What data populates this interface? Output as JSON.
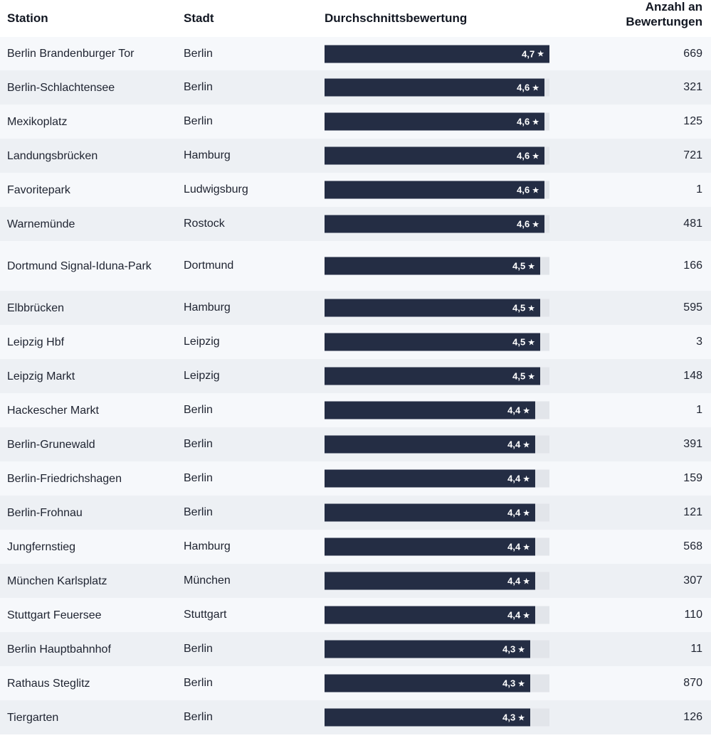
{
  "chart_data": {
    "type": "table",
    "columns": {
      "station": "Station",
      "city": "Stadt",
      "rating": "Durchschnittsbewertung",
      "count_line1": "Anzahl an",
      "count_line2": "Bewertungen"
    },
    "star_glyph": "★",
    "bar_color": "#242d44",
    "track_color": "#e2e5ea",
    "rating_scale_max": 5,
    "rows": [
      {
        "station": "Berlin Brandenburger Tor",
        "city": "Berlin",
        "rating": 4.7,
        "rating_label": "4,7",
        "count": "669"
      },
      {
        "station": "Berlin-Schlachtensee",
        "city": "Berlin",
        "rating": 4.6,
        "rating_label": "4,6",
        "count": "321"
      },
      {
        "station": "Mexikoplatz",
        "city": "Berlin",
        "rating": 4.6,
        "rating_label": "4,6",
        "count": "125"
      },
      {
        "station": "Landungsbrücken",
        "city": "Hamburg",
        "rating": 4.6,
        "rating_label": "4,6",
        "count": "721"
      },
      {
        "station": "Favoritepark",
        "city": "Ludwigsburg",
        "rating": 4.6,
        "rating_label": "4,6",
        "count": "1"
      },
      {
        "station": "Warnemünde",
        "city": "Rostock",
        "rating": 4.6,
        "rating_label": "4,6",
        "count": "481"
      },
      {
        "station": "Dortmund Signal-Iduna-Park",
        "city": "Dortmund",
        "rating": 4.5,
        "rating_label": "4,5",
        "count": "166"
      },
      {
        "station": "Elbbrücken",
        "city": "Hamburg",
        "rating": 4.5,
        "rating_label": "4,5",
        "count": "595"
      },
      {
        "station": "Leipzig Hbf",
        "city": "Leipzig",
        "rating": 4.5,
        "rating_label": "4,5",
        "count": "3"
      },
      {
        "station": "Leipzig Markt",
        "city": "Leipzig",
        "rating": 4.5,
        "rating_label": "4,5",
        "count": "148"
      },
      {
        "station": "Hackescher Markt",
        "city": "Berlin",
        "rating": 4.4,
        "rating_label": "4,4",
        "count": "1"
      },
      {
        "station": "Berlin-Grunewald",
        "city": "Berlin",
        "rating": 4.4,
        "rating_label": "4,4",
        "count": "391"
      },
      {
        "station": "Berlin-Friedrichshagen",
        "city": "Berlin",
        "rating": 4.4,
        "rating_label": "4,4",
        "count": "159"
      },
      {
        "station": "Berlin-Frohnau",
        "city": "Berlin",
        "rating": 4.4,
        "rating_label": "4,4",
        "count": "121"
      },
      {
        "station": "Jungfernstieg",
        "city": "Hamburg",
        "rating": 4.4,
        "rating_label": "4,4",
        "count": "568"
      },
      {
        "station": "München Karlsplatz",
        "city": "München",
        "rating": 4.4,
        "rating_label": "4,4",
        "count": "307"
      },
      {
        "station": "Stuttgart Feuersee",
        "city": "Stuttgart",
        "rating": 4.4,
        "rating_label": "4,4",
        "count": "110"
      },
      {
        "station": "Berlin Hauptbahnhof",
        "city": "Berlin",
        "rating": 4.3,
        "rating_label": "4,3",
        "count": "11"
      },
      {
        "station": "Rathaus Steglitz",
        "city": "Berlin",
        "rating": 4.3,
        "rating_label": "4,3",
        "count": "870"
      },
      {
        "station": "Tiergarten",
        "city": "Berlin",
        "rating": 4.3,
        "rating_label": "4,3",
        "count": "126"
      }
    ]
  }
}
